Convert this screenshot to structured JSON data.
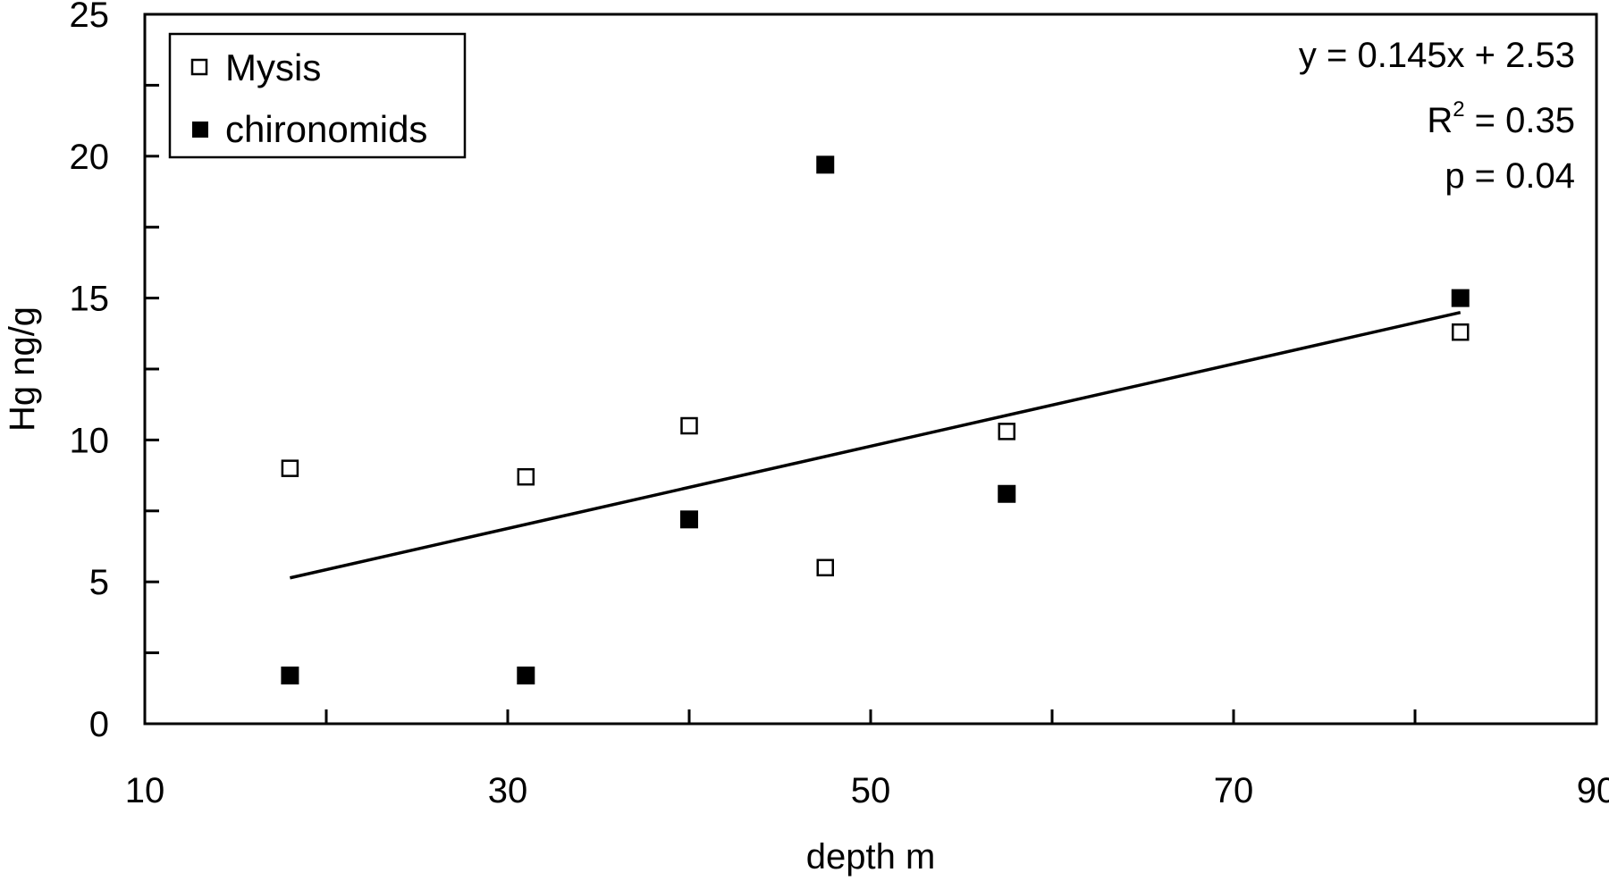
{
  "chart_data": {
    "type": "scatter",
    "title": "",
    "xlabel": "depth m",
    "ylabel": "Hg ng/g",
    "xlim": [
      10,
      90
    ],
    "ylim": [
      0,
      25
    ],
    "x_ticks": [
      10,
      30,
      50,
      70,
      90
    ],
    "y_ticks": [
      0,
      5,
      10,
      15,
      20,
      25
    ],
    "x_minor_step": 10,
    "y_minor_step": 2.5,
    "grid": false,
    "legend_position": "top-left",
    "series": [
      {
        "name": "Mysis",
        "marker": "open-square",
        "color": "#000000",
        "points": [
          {
            "x": 18,
            "y": 9.0
          },
          {
            "x": 31,
            "y": 8.7
          },
          {
            "x": 40,
            "y": 10.5
          },
          {
            "x": 47.5,
            "y": 5.5
          },
          {
            "x": 57.5,
            "y": 10.3
          },
          {
            "x": 82.5,
            "y": 13.8
          }
        ]
      },
      {
        "name": "chironomids",
        "marker": "filled-square",
        "color": "#000000",
        "points": [
          {
            "x": 18,
            "y": 1.7
          },
          {
            "x": 31,
            "y": 1.7
          },
          {
            "x": 40,
            "y": 7.2
          },
          {
            "x": 47.5,
            "y": 19.7
          },
          {
            "x": 57.5,
            "y": 8.1
          },
          {
            "x": 82.5,
            "y": 15.0
          }
        ]
      }
    ],
    "trendline": {
      "slope": 0.145,
      "intercept": 2.53,
      "x_range": [
        18,
        82.5
      ]
    },
    "annotations": {
      "equation": "y = 0.145x + 2.53",
      "r2_prefix": "R",
      "r2_sup": "2",
      "r2_value": " = 0.35",
      "p_value": "p = 0.04"
    }
  }
}
